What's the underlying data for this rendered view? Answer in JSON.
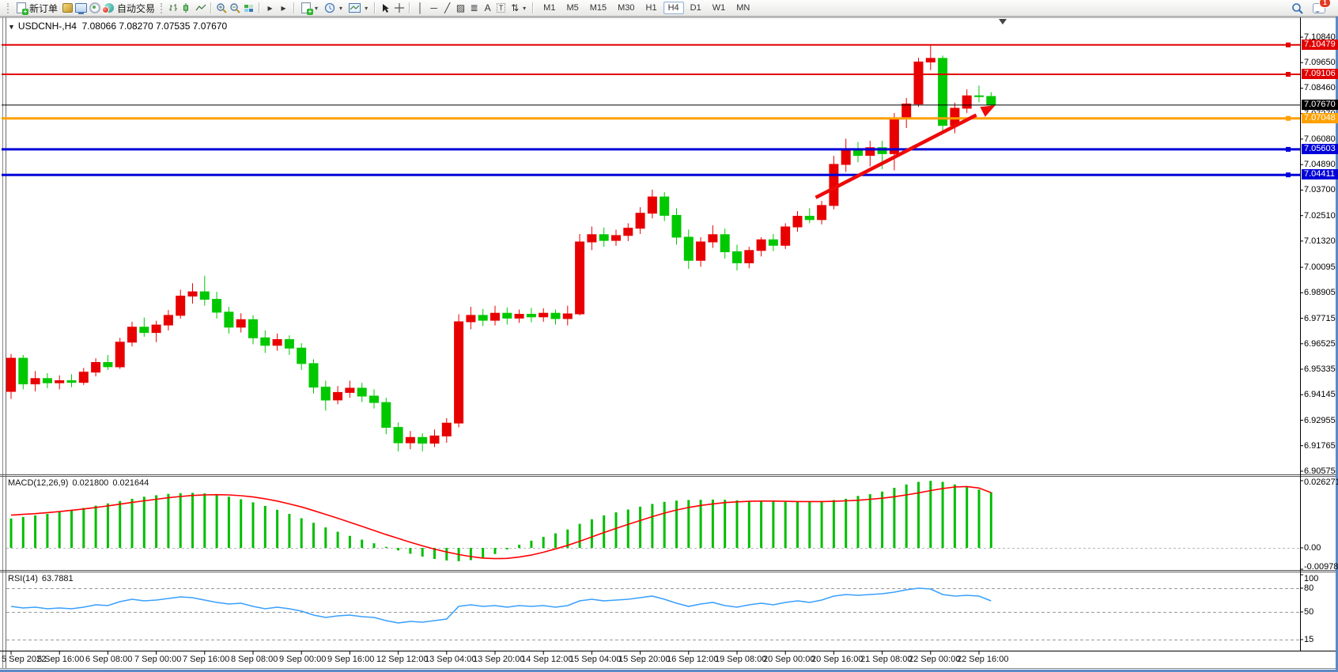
{
  "toolbar": {
    "new_order_label": "新订单",
    "autotrading_label": "自动交易",
    "timeframes": [
      "M1",
      "M5",
      "M15",
      "M30",
      "H1",
      "H4",
      "D1",
      "W1",
      "MN"
    ],
    "active_timeframe": "H4",
    "notification_badge": "1"
  },
  "chart": {
    "collapse_arrow": "▼",
    "symbol": "USDCNH-,H4",
    "ohlc": "7.08066 7.08270 7.07535 7.07670"
  },
  "macd_panel": {
    "name": "MACD(12,26,9)",
    "value_main": "0.021800",
    "value_signal": "0.021644"
  },
  "rsi_panel": {
    "name": "RSI(14)",
    "value": "63.7881"
  },
  "icons": {
    "dropdown_arrow": "▾",
    "vline": "│",
    "hline": "─",
    "trendline": "╱",
    "channel": "▨",
    "fibonacci": "≣",
    "text_tool": "A",
    "text_label_tool": "T",
    "arrows_tool": "⇅",
    "shift_end": "▸",
    "shift_marker": "▼"
  },
  "chart_data": {
    "type": "candlestick",
    "symbol": "USDCNH",
    "timeframe": "H4",
    "title": "USDCNH-,H4",
    "current_bar": {
      "open": 7.08066,
      "high": 7.0827,
      "low": 7.07535,
      "close": 7.0767
    },
    "up_color": "#e80000",
    "down_color": "#00c800",
    "price_axis": {
      "ticks": [
        7.1084,
        7.0965,
        7.0846,
        7.0727,
        7.0608,
        7.0489,
        7.037,
        7.0251,
        7.0132,
        7.00095,
        6.98905,
        6.97715,
        6.96525,
        6.95335,
        6.94145,
        6.92955,
        6.91765,
        6.90575
      ]
    },
    "levels": [
      {
        "price": 7.10479,
        "label": "7.10479",
        "color": "#e00000",
        "width": 2
      },
      {
        "price": 7.09106,
        "label": "7.09106",
        "color": "#e00000",
        "width": 2
      },
      {
        "price": 7.0767,
        "label": "7.07670",
        "color": "#000000",
        "width": 1
      },
      {
        "price": 7.07048,
        "label": "7.07048",
        "color": "#ffa000",
        "width": 3
      },
      {
        "price": 7.05603,
        "label": "7.05603",
        "color": "#0000d8",
        "width": 3
      },
      {
        "price": 7.04411,
        "label": "7.04411",
        "color": "#0000d8",
        "width": 3
      }
    ],
    "candles": [
      [
        6.943,
        6.9605,
        6.9395,
        6.9585
      ],
      [
        6.9585,
        6.96,
        6.944,
        6.9465
      ],
      [
        6.9465,
        6.9525,
        6.943,
        6.949
      ],
      [
        6.949,
        6.9515,
        6.9445,
        6.947
      ],
      [
        6.947,
        6.9505,
        6.944,
        6.948
      ],
      [
        6.948,
        6.951,
        6.945,
        6.9472
      ],
      [
        6.9472,
        6.954,
        6.946,
        6.952
      ],
      [
        6.952,
        6.9585,
        6.95,
        6.9565
      ],
      [
        6.9565,
        6.96,
        6.953,
        6.9545
      ],
      [
        6.9545,
        6.968,
        6.9535,
        6.966
      ],
      [
        6.966,
        6.9755,
        6.964,
        6.973
      ],
      [
        6.973,
        6.9775,
        6.9685,
        6.9705
      ],
      [
        6.9705,
        6.976,
        6.966,
        6.974
      ],
      [
        6.974,
        6.981,
        6.9715,
        6.9785
      ],
      [
        6.9785,
        6.9905,
        6.977,
        6.9875
      ],
      [
        6.9875,
        6.9935,
        6.984,
        6.9895
      ],
      [
        6.9895,
        6.997,
        6.983,
        6.986
      ],
      [
        6.986,
        6.9895,
        6.977,
        6.98
      ],
      [
        6.98,
        6.9825,
        6.97,
        6.973
      ],
      [
        6.973,
        6.9795,
        6.9705,
        6.9765
      ],
      [
        6.9765,
        6.9785,
        6.965,
        6.968
      ],
      [
        6.968,
        6.9715,
        6.961,
        6.9645
      ],
      [
        6.9645,
        6.97,
        6.962,
        6.9672
      ],
      [
        6.9672,
        6.9692,
        6.96,
        6.9632
      ],
      [
        6.9632,
        6.9655,
        6.953,
        6.956
      ],
      [
        6.956,
        6.958,
        6.942,
        6.945
      ],
      [
        6.945,
        6.948,
        6.934,
        6.939
      ],
      [
        6.939,
        6.9455,
        6.937,
        6.9425
      ],
      [
        6.9425,
        6.948,
        6.94,
        6.9445
      ],
      [
        6.9445,
        6.947,
        6.938,
        6.9408
      ],
      [
        6.9408,
        6.944,
        6.935,
        6.9378
      ],
      [
        6.9378,
        6.94,
        6.923,
        6.9262
      ],
      [
        6.9262,
        6.9285,
        6.915,
        6.919
      ],
      [
        6.919,
        6.9245,
        6.916,
        6.9215
      ],
      [
        6.9215,
        6.9235,
        6.915,
        6.9188
      ],
      [
        6.9188,
        6.9252,
        6.917,
        6.9222
      ],
      [
        6.9222,
        6.9305,
        6.919,
        6.9282
      ],
      [
        6.9282,
        6.979,
        6.9262,
        6.9755
      ],
      [
        6.9755,
        6.9825,
        6.972,
        6.9785
      ],
      [
        6.9785,
        6.9815,
        6.9735,
        6.9762
      ],
      [
        6.9762,
        6.983,
        6.9738,
        6.9795
      ],
      [
        6.9795,
        6.9822,
        6.9742,
        6.9772
      ],
      [
        6.9772,
        6.9812,
        6.975,
        6.979
      ],
      [
        6.979,
        6.982,
        6.9752,
        6.9778
      ],
      [
        6.9778,
        6.9818,
        6.9755,
        6.9795
      ],
      [
        6.9795,
        6.9812,
        6.9742,
        6.977
      ],
      [
        6.977,
        6.983,
        6.9738,
        6.9792
      ],
      [
        6.9792,
        7.0165,
        6.9785,
        7.0128
      ],
      [
        7.0128,
        7.02,
        7.009,
        7.0162
      ],
      [
        7.0162,
        7.0195,
        7.0105,
        7.0135
      ],
      [
        7.0135,
        7.0185,
        7.011,
        7.0158
      ],
      [
        7.0158,
        7.0215,
        7.0132,
        7.0192
      ],
      [
        7.0192,
        7.029,
        7.0165,
        7.0262
      ],
      [
        7.0262,
        7.0372,
        7.0238,
        7.0338
      ],
      [
        7.0338,
        7.036,
        7.0225,
        7.0252
      ],
      [
        7.0252,
        7.0285,
        7.0115,
        7.015
      ],
      [
        7.015,
        7.0185,
        7.0002,
        7.0042
      ],
      [
        7.0042,
        7.015,
        7.0012,
        7.0128
      ],
      [
        7.0128,
        7.0205,
        7.01,
        7.0162
      ],
      [
        7.0162,
        7.019,
        7.005,
        7.0082
      ],
      [
        7.0082,
        7.0115,
        6.9995,
        7.003
      ],
      [
        7.003,
        7.0105,
        7.0005,
        7.0088
      ],
      [
        7.0088,
        7.015,
        7.006,
        7.0138
      ],
      [
        7.0138,
        7.0165,
        7.0085,
        7.0112
      ],
      [
        7.0112,
        7.0215,
        7.0095,
        7.0198
      ],
      [
        7.0198,
        7.0272,
        7.0175,
        7.0248
      ],
      [
        7.0248,
        7.0285,
        7.0215,
        7.0232
      ],
      [
        7.0232,
        7.032,
        7.021,
        7.0298
      ],
      [
        7.0298,
        7.053,
        7.028,
        7.049
      ],
      [
        7.049,
        7.061,
        7.0455,
        7.056
      ],
      [
        7.056,
        7.0595,
        7.05,
        7.0532
      ],
      [
        7.0532,
        7.06,
        7.048,
        7.0568
      ],
      [
        7.0568,
        7.06,
        7.0468,
        7.054
      ],
      [
        7.054,
        7.073,
        7.0462,
        7.0705
      ],
      [
        7.0705,
        7.08,
        7.066,
        7.0772
      ],
      [
        7.0772,
        7.0988,
        7.0758,
        7.0968
      ],
      [
        7.0968,
        7.1048,
        7.093,
        7.0985
      ],
      [
        7.0985,
        7.0998,
        7.064,
        7.0672
      ],
      [
        7.0672,
        7.0778,
        7.0635,
        7.0752
      ],
      [
        7.0752,
        7.084,
        7.073,
        7.081
      ],
      [
        7.081,
        7.0858,
        7.078,
        7.0807
      ],
      [
        7.0807,
        7.0827,
        7.0754,
        7.0767
      ]
    ],
    "trend_arrow": {
      "from_bar": 66.5,
      "from_price": 7.0335,
      "to_bar": 80.3,
      "to_price": 7.0735,
      "color": "#ee0a0a",
      "width": 4.5
    },
    "time_axis": {
      "labels": [
        "5 Sep 2022",
        "5 Sep 16:00",
        "6 Sep 08:00",
        "7 Sep 00:00",
        "7 Sep 16:00",
        "8 Sep 08:00",
        "9 Sep 00:00",
        "9 Sep 16:00",
        "12 Sep 12:00",
        "13 Sep 04:00",
        "13 Sep 20:00",
        "14 Sep 12:00",
        "15 Sep 04:00",
        "15 Sep 20:00",
        "16 Sep 12:00",
        "19 Sep 08:00",
        "20 Sep 00:00",
        "20 Sep 16:00",
        "21 Sep 08:00",
        "22 Sep 00:00",
        "22 Sep 16:00"
      ],
      "bars": [
        0,
        4,
        8,
        12,
        16,
        20,
        24,
        28,
        32,
        36,
        40,
        44,
        48,
        52,
        56,
        60,
        64,
        68,
        72,
        76,
        80
      ]
    },
    "macd": {
      "params": "12,26,9",
      "hist_color": "#00be00",
      "signal_color": "#ff0000",
      "axis_labels": [
        "0.026271",
        "0.00",
        "-0.009781"
      ],
      "axis_values": [
        0.026271,
        0,
        -0.009781
      ],
      "histogram": [
        0.0115,
        0.0121,
        0.0127,
        0.0133,
        0.014,
        0.0148,
        0.0156,
        0.0165,
        0.0174,
        0.0183,
        0.0192,
        0.02,
        0.0206,
        0.0211,
        0.0214,
        0.0215,
        0.0213,
        0.0208,
        0.02,
        0.019,
        0.0178,
        0.0164,
        0.0149,
        0.0133,
        0.0116,
        0.0098,
        0.008,
        0.0063,
        0.0047,
        0.0032,
        0.0018,
        0.0004,
        -0.001,
        -0.0023,
        -0.0034,
        -0.0043,
        -0.0049,
        -0.0052,
        -0.0048,
        -0.0038,
        -0.0024,
        -0.0006,
        0.0012,
        0.0028,
        0.0043,
        0.0057,
        0.0072,
        0.0094,
        0.0112,
        0.0127,
        0.0139,
        0.015,
        0.0161,
        0.0172,
        0.018,
        0.0185,
        0.0187,
        0.0188,
        0.0189,
        0.0188,
        0.0186,
        0.0184,
        0.0183,
        0.0181,
        0.018,
        0.018,
        0.0181,
        0.0183,
        0.0187,
        0.0192,
        0.0203,
        0.021,
        0.022,
        0.0235,
        0.0248,
        0.0258,
        0.0262,
        0.0258,
        0.0248,
        0.0238,
        0.0228,
        0.0218
      ],
      "signal": [
        0.0128,
        0.0131,
        0.0134,
        0.0138,
        0.0142,
        0.0147,
        0.0152,
        0.0158,
        0.0164,
        0.0171,
        0.0178,
        0.0184,
        0.019,
        0.0196,
        0.0201,
        0.0205,
        0.0207,
        0.0208,
        0.0207,
        0.0204,
        0.0199,
        0.0192,
        0.0183,
        0.0172,
        0.016,
        0.0146,
        0.0131,
        0.0116,
        0.01,
        0.0084,
        0.0068,
        0.0052,
        0.0037,
        0.0022,
        0.0008,
        -0.0005,
        -0.0016,
        -0.0026,
        -0.0034,
        -0.004,
        -0.0042,
        -0.0041,
        -0.0036,
        -0.0028,
        -0.0017,
        -0.0004,
        0.001,
        0.0026,
        0.0043,
        0.006,
        0.0076,
        0.0092,
        0.0107,
        0.0122,
        0.0136,
        0.0148,
        0.0158,
        0.0166,
        0.0172,
        0.0177,
        0.018,
        0.0182,
        0.0183,
        0.0183,
        0.0182,
        0.0181,
        0.0181,
        0.0181,
        0.0182,
        0.0184,
        0.0186,
        0.019,
        0.0194,
        0.02,
        0.0207,
        0.0215,
        0.0224,
        0.0232,
        0.0238,
        0.024,
        0.0234,
        0.0216
      ]
    },
    "rsi": {
      "period": 14,
      "color": "#3aa0ff",
      "axis_labels": [
        "100",
        "80",
        "50",
        "15"
      ],
      "axis_values": [
        100,
        80,
        50,
        15
      ],
      "level_lines": [
        80,
        50,
        15
      ],
      "values": [
        57,
        55,
        56,
        54,
        55,
        54,
        56,
        59,
        58,
        63,
        66,
        64,
        65,
        67,
        69,
        68,
        65,
        62,
        60,
        61,
        57,
        54,
        56,
        54,
        51,
        46,
        43,
        45,
        46,
        44,
        43,
        39,
        36,
        38,
        37,
        39,
        41,
        57,
        59,
        57,
        58,
        56,
        58,
        57,
        58,
        56,
        58,
        64,
        66,
        64,
        65,
        66,
        68,
        70,
        66,
        61,
        57,
        60,
        62,
        58,
        56,
        59,
        61,
        59,
        62,
        64,
        62,
        65,
        70,
        72,
        71,
        72,
        73,
        75,
        78,
        80,
        79,
        72,
        70,
        71,
        70,
        64
      ]
    }
  }
}
